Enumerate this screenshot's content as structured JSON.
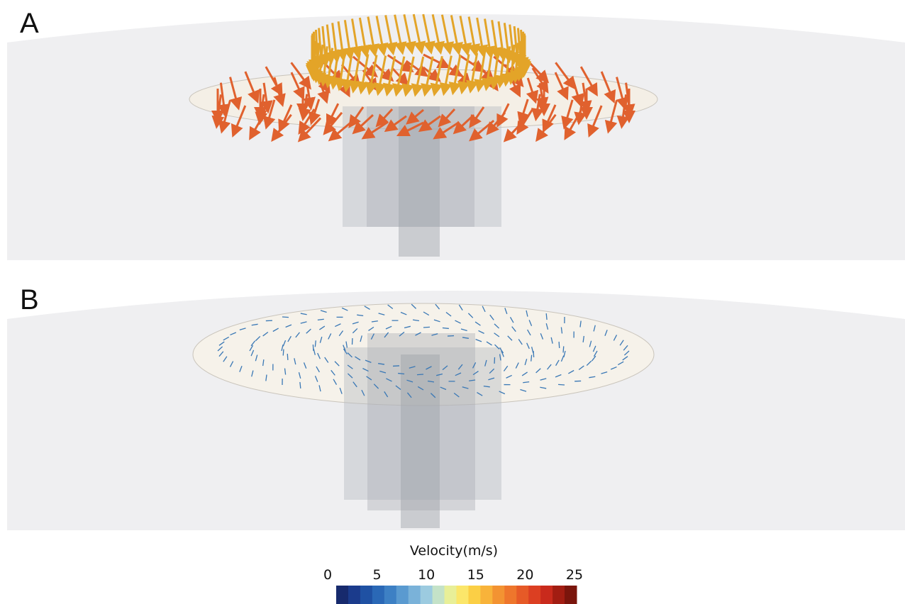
{
  "panels": [
    {
      "label": "A"
    },
    {
      "label": "B"
    }
  ],
  "colorbar": {
    "title": "Velocity(m/s)",
    "range": [
      0,
      25
    ],
    "ticks": [
      0,
      5,
      10,
      15,
      20,
      25
    ]
  }
}
